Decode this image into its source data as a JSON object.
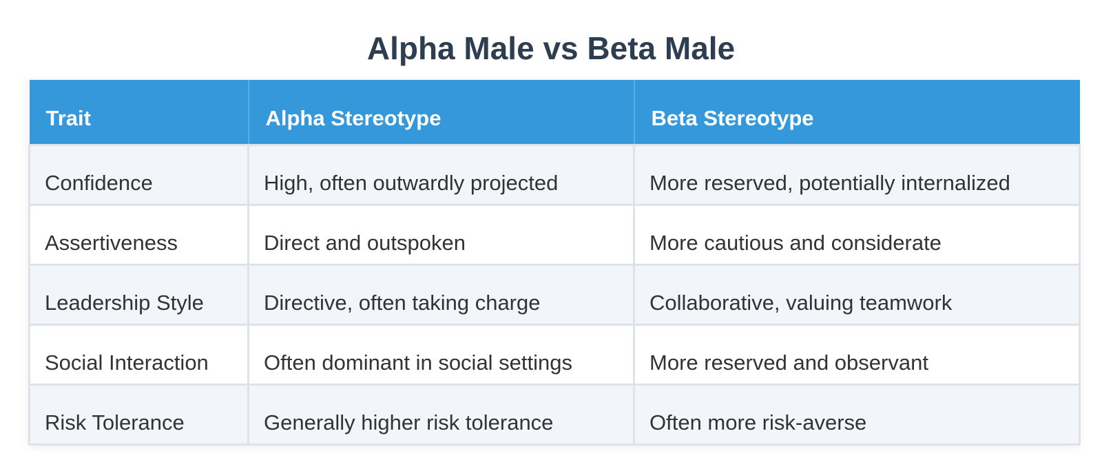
{
  "title": "Alpha Male vs Beta Male",
  "table": {
    "headers": [
      "Trait",
      "Alpha Stereotype",
      "Beta Stereotype"
    ],
    "rows": [
      [
        "Confidence",
        "High, often outwardly projected",
        "More reserved, potentially internalized"
      ],
      [
        "Assertiveness",
        "Direct and outspoken",
        "More cautious and considerate"
      ],
      [
        "Leadership Style",
        "Directive, often taking charge",
        "Collaborative, valuing teamwork"
      ],
      [
        "Social Interaction",
        "Often dominant in social settings",
        "More reserved and observant"
      ],
      [
        "Risk Tolerance",
        "Generally higher risk tolerance",
        "Often more risk-averse"
      ]
    ]
  },
  "colors": {
    "header_bg": "#3498db",
    "title": "#2c3e50",
    "row_alt_bg": "#f2f5f9"
  }
}
